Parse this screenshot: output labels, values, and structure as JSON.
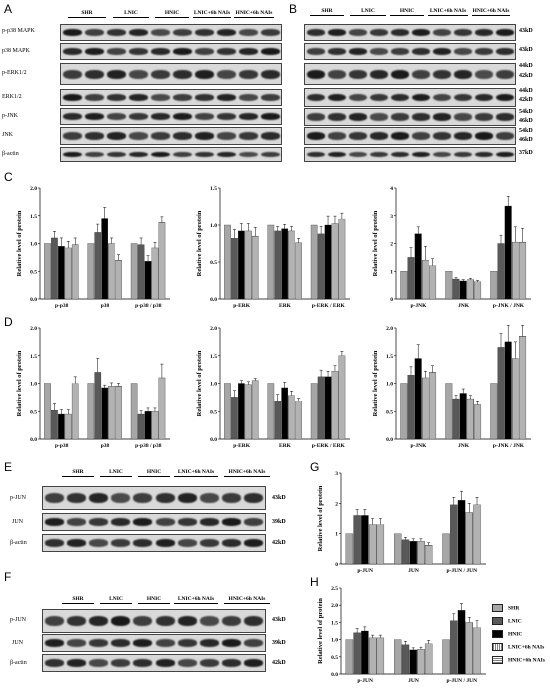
{
  "panels": {
    "A": {
      "letter": "A",
      "lanes": [
        "SHR",
        "LNIC",
        "HNIC",
        "LNIC+6h NAIs",
        "HNIC+6h NAIs"
      ],
      "rows": [
        "p-p38 MAPK",
        "p38 MAPK",
        "p-ERK1/2",
        "ERK1/2",
        "p-JNK",
        "JNK",
        "β-actin"
      ]
    },
    "B": {
      "letter": "B",
      "lanes": [
        "SHR",
        "LNIC",
        "HNIC",
        "LNIC+6h NAIs",
        "HNIC+6h NAIs"
      ],
      "kd": [
        "43kD",
        "43kD",
        "44kD",
        "42kD",
        "44kD",
        "42kD",
        "54kD",
        "46kD",
        "54kD",
        "46kD",
        "37kD"
      ]
    },
    "C": {
      "letter": "C"
    },
    "D": {
      "letter": "D"
    },
    "E": {
      "letter": "E",
      "lanes": [
        "SHR",
        "LNIC",
        "HNIC",
        "LNIC+6h NAIs",
        "HNIC+6h NAIs"
      ],
      "rows": [
        "p-JUN",
        "JUN",
        "β-actin"
      ],
      "kd": [
        "43kD",
        "39kD",
        "42kD"
      ]
    },
    "F": {
      "letter": "F",
      "lanes": [
        "SHR",
        "LNIC",
        "HNIC",
        "LNIC+6h NAIs",
        "HNIC+6h NAIs"
      ],
      "rows": [
        "p-JUN",
        "JUN",
        "β-actin"
      ],
      "kd": [
        "43kD",
        "39kD",
        "42kD"
      ]
    },
    "G": {
      "letter": "G"
    },
    "H": {
      "letter": "H"
    }
  },
  "legend": {
    "items": [
      {
        "label": "SHR",
        "color": "#a6a6a6",
        "pattern": "solid"
      },
      {
        "label": "LNIC",
        "color": "#595959",
        "pattern": "solid"
      },
      {
        "label": "HNIC",
        "color": "#000000",
        "pattern": "solid"
      },
      {
        "label": "LNIC+6h NAIs",
        "color": "#ffffff",
        "pattern": "vlines"
      },
      {
        "label": "HNIC+6h NAIs",
        "color": "#ffffff",
        "pattern": "hlines"
      }
    ]
  },
  "chart_data": [
    {
      "id": "C1",
      "type": "bar",
      "ylabel": "Relative level of protein",
      "ylim": [
        0,
        2.0
      ],
      "yticks": [
        "0.0",
        "0.5",
        "1.0",
        "1.5",
        "2.0"
      ],
      "categories": [
        "p-p38",
        "p38",
        "p-p38 / p38"
      ],
      "series": [
        {
          "name": "SHR",
          "values": [
            1.0,
            1.0,
            1.0
          ]
        },
        {
          "name": "LNIC",
          "values": [
            1.1,
            1.2,
            0.98
          ]
        },
        {
          "name": "HNIC",
          "values": [
            0.95,
            1.45,
            0.68
          ]
        },
        {
          "name": "LNIC+6h NAIs",
          "values": [
            0.92,
            1.0,
            0.92
          ]
        },
        {
          "name": "HNIC+6h NAIs",
          "values": [
            0.98,
            0.7,
            1.38
          ]
        }
      ],
      "errors": [
        [
          0,
          0,
          0
        ],
        [
          0.12,
          0.15,
          0.12
        ],
        [
          0.15,
          0.2,
          0.1
        ],
        [
          0.12,
          0.1,
          0.1
        ],
        [
          0.12,
          0.1,
          0.1
        ]
      ]
    },
    {
      "id": "C2",
      "type": "bar",
      "ylabel": "Relative level of protein",
      "ylim": [
        0,
        1.5
      ],
      "yticks": [
        "0.0",
        "0.5",
        "1.0",
        "1.5"
      ],
      "categories": [
        "p-ERK",
        "ERK",
        "p-ERK / ERK"
      ],
      "series": [
        {
          "name": "SHR",
          "values": [
            1.0,
            1.0,
            1.0
          ]
        },
        {
          "name": "LNIC",
          "values": [
            0.82,
            0.92,
            0.88
          ]
        },
        {
          "name": "HNIC",
          "values": [
            0.92,
            0.95,
            1.0
          ]
        },
        {
          "name": "LNIC+6h NAIs",
          "values": [
            0.92,
            0.92,
            1.02
          ]
        },
        {
          "name": "HNIC+6h NAIs",
          "values": [
            0.85,
            0.76,
            1.08
          ]
        }
      ],
      "errors": [
        [
          0,
          0,
          0
        ],
        [
          0.12,
          0.06,
          0.1
        ],
        [
          0.1,
          0.06,
          0.12
        ],
        [
          0.1,
          0.06,
          0.1
        ],
        [
          0.12,
          0.06,
          0.08
        ]
      ]
    },
    {
      "id": "C3",
      "type": "bar",
      "ylabel": "Relative level of protein",
      "ylim": [
        0,
        4.0
      ],
      "yticks": [
        "0",
        "1",
        "2",
        "3",
        "4"
      ],
      "categories": [
        "p-JNK",
        "JNK",
        "p-JNK / JNK"
      ],
      "series": [
        {
          "name": "SHR",
          "values": [
            1.0,
            1.0,
            1.0
          ]
        },
        {
          "name": "LNIC",
          "values": [
            1.5,
            0.72,
            2.0
          ]
        },
        {
          "name": "HNIC",
          "values": [
            2.35,
            0.65,
            3.35
          ]
        },
        {
          "name": "LNIC+6h NAIs",
          "values": [
            1.4,
            0.7,
            2.05
          ]
        },
        {
          "name": "HNIC+6h NAIs",
          "values": [
            1.2,
            0.62,
            2.05
          ]
        }
      ],
      "errors": [
        [
          0,
          0,
          0
        ],
        [
          0.35,
          0.05,
          0.3
        ],
        [
          0.25,
          0.05,
          0.35
        ],
        [
          0.5,
          0.05,
          0.55
        ],
        [
          0.25,
          0.05,
          0.5
        ]
      ]
    },
    {
      "id": "D1",
      "type": "bar",
      "ylabel": "Relative level of protein",
      "ylim": [
        0,
        2.0
      ],
      "yticks": [
        "0.0",
        "0.5",
        "1.0",
        "1.5",
        "2.0"
      ],
      "categories": [
        "p-p38",
        "p38",
        "p-p38 / p38"
      ],
      "series": [
        {
          "name": "SHR",
          "values": [
            1.0,
            1.0,
            1.0
          ]
        },
        {
          "name": "LNIC",
          "values": [
            0.52,
            1.2,
            0.45
          ]
        },
        {
          "name": "HNIC",
          "values": [
            0.45,
            0.92,
            0.5
          ]
        },
        {
          "name": "LNIC+6h NAIs",
          "values": [
            0.45,
            0.95,
            0.5
          ]
        },
        {
          "name": "HNIC+6h NAIs",
          "values": [
            1.0,
            0.95,
            1.1
          ]
        }
      ],
      "errors": [
        [
          0,
          0,
          0
        ],
        [
          0.12,
          0.25,
          0.06
        ],
        [
          0.08,
          0.05,
          0.06
        ],
        [
          0.08,
          0.06,
          0.06
        ],
        [
          0.12,
          0.05,
          0.25
        ]
      ]
    },
    {
      "id": "D2",
      "type": "bar",
      "ylabel": "Relative level of protein",
      "ylim": [
        0,
        2.0
      ],
      "yticks": [
        "0.0",
        "0.5",
        "1.0",
        "1.5",
        "2.0"
      ],
      "categories": [
        "p-ERK",
        "ERK",
        "p-ERK / ERK"
      ],
      "series": [
        {
          "name": "SHR",
          "values": [
            1.0,
            1.0,
            1.0
          ]
        },
        {
          "name": "LNIC",
          "values": [
            0.75,
            0.68,
            1.12
          ]
        },
        {
          "name": "HNIC",
          "values": [
            1.0,
            0.92,
            1.12
          ]
        },
        {
          "name": "LNIC+6h NAIs",
          "values": [
            0.98,
            0.78,
            1.22
          ]
        },
        {
          "name": "HNIC+6h NAIs",
          "values": [
            1.05,
            0.68,
            1.5
          ]
        }
      ],
      "errors": [
        [
          0,
          0,
          0
        ],
        [
          0.12,
          0.12,
          0.12
        ],
        [
          0.05,
          0.1,
          0.1
        ],
        [
          0.05,
          0.08,
          0.1
        ],
        [
          0.04,
          0.05,
          0.08
        ]
      ]
    },
    {
      "id": "D3",
      "type": "bar",
      "ylabel": "Relative level of protein",
      "ylim": [
        0,
        2.0
      ],
      "yticks": [
        "0.0",
        "0.5",
        "1.0",
        "1.5",
        "2.0"
      ],
      "categories": [
        "p-JNK",
        "JNK",
        "p-JNK / JNK"
      ],
      "series": [
        {
          "name": "SHR",
          "values": [
            1.0,
            1.0,
            1.0
          ]
        },
        {
          "name": "LNIC",
          "values": [
            1.15,
            0.72,
            1.65
          ]
        },
        {
          "name": "HNIC",
          "values": [
            1.45,
            0.82,
            1.75
          ]
        },
        {
          "name": "LNIC+6h NAIs",
          "values": [
            1.1,
            0.72,
            1.45
          ]
        },
        {
          "name": "HNIC+6h NAIs",
          "values": [
            1.2,
            0.62,
            1.85
          ]
        }
      ],
      "errors": [
        [
          0,
          0,
          0
        ],
        [
          0.15,
          0.06,
          0.25
        ],
        [
          0.25,
          0.08,
          0.3
        ],
        [
          0.12,
          0.06,
          0.3
        ],
        [
          0.12,
          0.06,
          0.2
        ]
      ]
    },
    {
      "id": "G",
      "type": "bar",
      "ylabel": "Relative level of protein",
      "ylim": [
        0,
        3
      ],
      "yticks": [
        "0",
        "1",
        "2",
        "3"
      ],
      "categories": [
        "p-JUN",
        "JUN",
        "p-JUN / JUN"
      ],
      "series": [
        {
          "name": "SHR",
          "values": [
            1.0,
            1.0,
            1.0
          ]
        },
        {
          "name": "LNIC",
          "values": [
            1.6,
            0.8,
            1.95
          ]
        },
        {
          "name": "HNIC",
          "values": [
            1.6,
            0.75,
            2.1
          ]
        },
        {
          "name": "LNIC+6h NAIs",
          "values": [
            1.3,
            0.75,
            1.7
          ]
        },
        {
          "name": "HNIC+6h NAIs",
          "values": [
            1.3,
            0.62,
            1.95
          ]
        }
      ],
      "errors": [
        [
          0,
          0,
          0
        ],
        [
          0.2,
          0.08,
          0.25
        ],
        [
          0.2,
          0.08,
          0.3
        ],
        [
          0.2,
          0.08,
          0.3
        ],
        [
          0.2,
          0.08,
          0.25
        ]
      ]
    },
    {
      "id": "H",
      "type": "bar",
      "ylabel": "Relative level of protein",
      "ylim": [
        0,
        2.5
      ],
      "yticks": [
        "0.0",
        "0.5",
        "1.0",
        "1.5",
        "2.0",
        "2.5"
      ],
      "categories": [
        "p-JUN",
        "JUN",
        "p-JUN / JUN"
      ],
      "series": [
        {
          "name": "SHR",
          "values": [
            1.0,
            1.0,
            1.0
          ]
        },
        {
          "name": "LNIC",
          "values": [
            1.2,
            0.85,
            1.55
          ]
        },
        {
          "name": "HNIC",
          "values": [
            1.25,
            0.7,
            1.85
          ]
        },
        {
          "name": "LNIC+6h NAIs",
          "values": [
            1.05,
            0.72,
            1.5
          ]
        },
        {
          "name": "HNIC+6h NAIs",
          "values": [
            1.05,
            0.88,
            1.35
          ]
        }
      ],
      "errors": [
        [
          0,
          0,
          0
        ],
        [
          0.12,
          0.1,
          0.2
        ],
        [
          0.12,
          0.06,
          0.2
        ],
        [
          0.08,
          0.06,
          0.15
        ],
        [
          0.08,
          0.1,
          0.2
        ]
      ]
    }
  ]
}
